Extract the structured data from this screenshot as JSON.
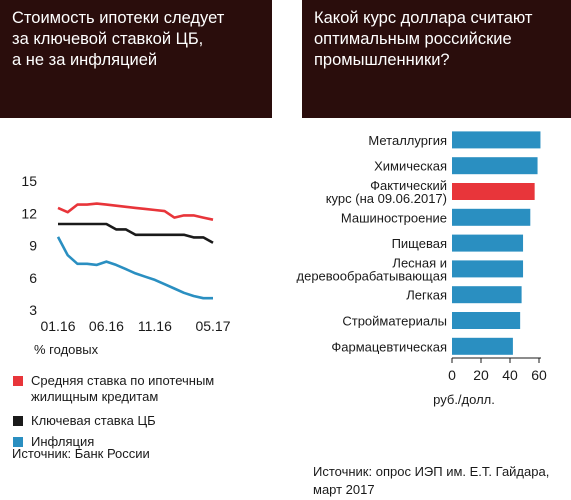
{
  "left_panel": {
    "title": "Стоимость ипотеки следует\nза ключевой ставкой ЦБ,\nа не за инфляцией",
    "source": "Источник: Банк России"
  },
  "right_panel": {
    "title": "Какой курс доллара считают\nоптимальным российские\nпромышленники?",
    "source": "Источник: опрос ИЭП им. Е.Т. Гайдара,\nмарт 2017"
  },
  "chart_data": [
    {
      "type": "line",
      "ylabel": "% годовых",
      "ylim": [
        3,
        15
      ],
      "yticks": [
        3,
        6,
        9,
        12,
        15
      ],
      "x_tick_labels": [
        "01.16",
        "06.16",
        "11.16",
        "05.17"
      ],
      "x_tick_index": [
        0,
        5,
        10,
        16
      ],
      "x_count": 17,
      "legend": "bottom",
      "series": [
        {
          "name": "Средняя ставка по ипотечным\nжилищным кредитам",
          "color": "#e8353a",
          "values": [
            12.5,
            12.1,
            12.8,
            12.8,
            12.9,
            12.8,
            12.7,
            12.6,
            12.5,
            12.4,
            12.3,
            12.2,
            11.6,
            11.8,
            11.8,
            11.6,
            11.4
          ]
        },
        {
          "name": "Ключевая ставка ЦБ",
          "color": "#1a1a1a",
          "values": [
            11,
            11,
            11,
            11,
            11,
            11,
            10.5,
            10.5,
            10,
            10,
            10,
            10,
            10,
            10,
            9.75,
            9.75,
            9.25
          ]
        },
        {
          "name": "Инфляция",
          "color": "#2a8fc1",
          "values": [
            9.8,
            8.1,
            7.3,
            7.3,
            7.2,
            7.5,
            7.2,
            6.8,
            6.4,
            6.1,
            5.8,
            5.4,
            5.0,
            4.6,
            4.3,
            4.1,
            4.1
          ]
        }
      ]
    },
    {
      "type": "bar",
      "orientation": "horizontal",
      "xlabel": "руб./долл.",
      "xlim": [
        0,
        60
      ],
      "xticks": [
        0,
        20,
        40,
        60
      ],
      "categories": [
        "Металлургия",
        "Химическая",
        "Фактический\nкурс (на 09.06.2017)",
        "Машиностроение",
        "Пищевая",
        "Лесная и\nдеревообрабатывающая",
        "Легкая",
        "Стройматериалы",
        "Фармацевтическая"
      ],
      "values": [
        61,
        59,
        57,
        54,
        49,
        49,
        48,
        47,
        42
      ],
      "colors": [
        "#2a8fc1",
        "#2a8fc1",
        "#e8353a",
        "#2a8fc1",
        "#2a8fc1",
        "#2a8fc1",
        "#2a8fc1",
        "#2a8fc1",
        "#2a8fc1"
      ]
    }
  ]
}
